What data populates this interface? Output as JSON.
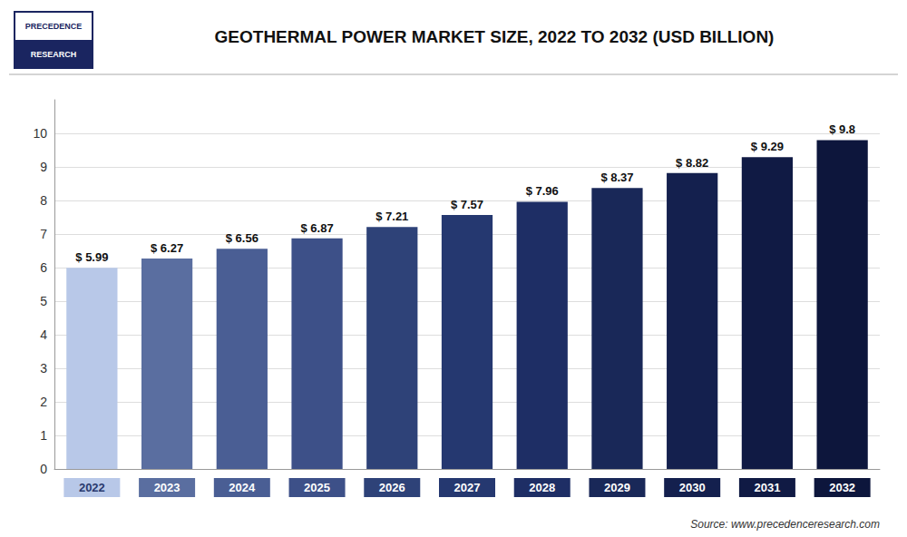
{
  "chart_data": {
    "type": "bar",
    "title": "GEOTHERMAL POWER MARKET SIZE, 2022 TO 2032 (USD BILLION)",
    "categories": [
      "2022",
      "2023",
      "2024",
      "2025",
      "2026",
      "2027",
      "2028",
      "2029",
      "2030",
      "2031",
      "2032"
    ],
    "values": [
      5.99,
      6.27,
      6.56,
      6.87,
      7.21,
      7.57,
      7.96,
      8.37,
      8.82,
      9.29,
      9.8
    ],
    "value_labels": [
      "$ 5.99",
      "$ 6.27",
      "$ 6.56",
      "$ 6.87",
      "$ 7.21",
      "$ 7.57",
      "$ 7.96",
      "$ 8.37",
      "$ 8.82",
      "$ 9.29",
      "$ 9.8"
    ],
    "data_labels": true,
    "colors": [
      "#b8c8e8",
      "#5a6ea0",
      "#4a5e94",
      "#3d5088",
      "#2e4278",
      "#253870",
      "#1e2e65",
      "#192858",
      "#14204e",
      "#101a44",
      "#0d163c"
    ],
    "ylim": [
      0,
      11.0
    ],
    "yticks": [
      0,
      1,
      2,
      3,
      4,
      5,
      6,
      7,
      8,
      9,
      10
    ],
    "grid": true,
    "annotations": [
      "PRECEDENCE",
      "RESEARCH",
      "Source: www.precedenceresearch.com"
    ]
  }
}
